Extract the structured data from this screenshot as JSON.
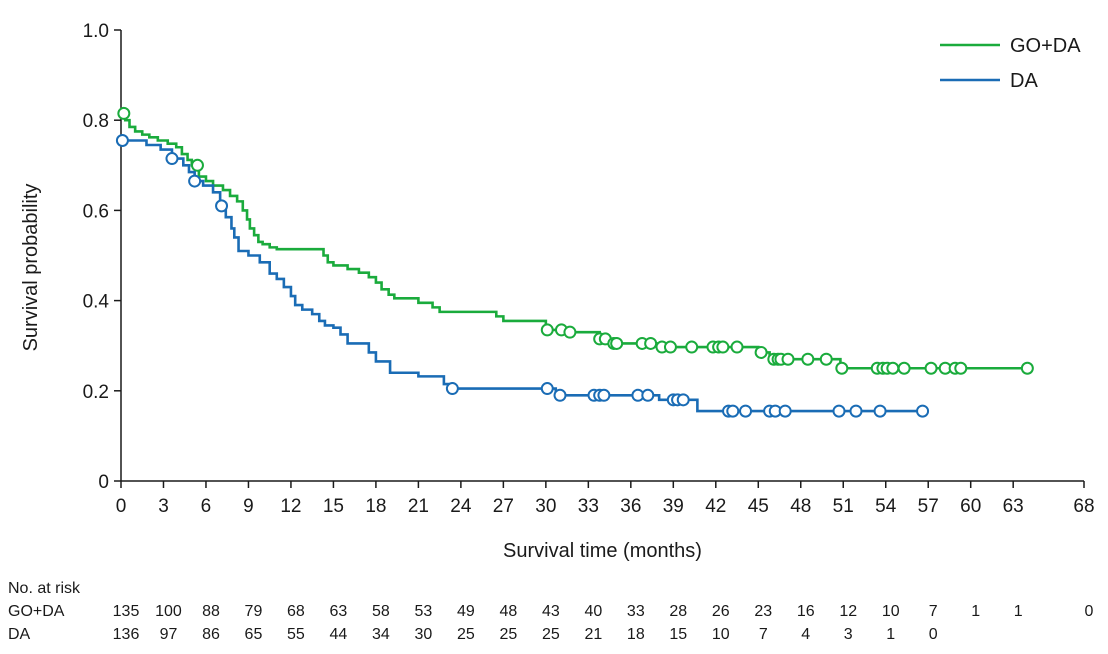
{
  "chart_data": {
    "type": "line",
    "subtype": "kaplan-meier",
    "xlabel": "Survival time (months)",
    "ylabel": "Survival probability",
    "xlim": [
      0,
      68
    ],
    "ylim": [
      0,
      1.0
    ],
    "x_ticks": [
      0,
      3,
      6,
      9,
      12,
      15,
      18,
      21,
      24,
      27,
      30,
      33,
      36,
      39,
      42,
      45,
      48,
      51,
      54,
      57,
      60,
      63,
      68
    ],
    "y_ticks": [
      0,
      0.2,
      0.4,
      0.6,
      0.8,
      1.0
    ],
    "y_tick_labels": [
      "0",
      "0.2",
      "0.4",
      "0.6",
      "0.8",
      "1.0"
    ],
    "grid": false,
    "legend_position": "top-right",
    "series": [
      {
        "name": "GO+DA",
        "color": "#1aab3c",
        "steps": [
          [
            0,
            0.815
          ],
          [
            0.3,
            0.8
          ],
          [
            0.6,
            0.785
          ],
          [
            1.0,
            0.775
          ],
          [
            1.5,
            0.768
          ],
          [
            2.0,
            0.762
          ],
          [
            2.6,
            0.755
          ],
          [
            3.3,
            0.748
          ],
          [
            3.9,
            0.74
          ],
          [
            4.3,
            0.725
          ],
          [
            4.7,
            0.712
          ],
          [
            5.0,
            0.7
          ],
          [
            5.5,
            0.675
          ],
          [
            6.0,
            0.665
          ],
          [
            6.5,
            0.655
          ],
          [
            7.2,
            0.645
          ],
          [
            7.7,
            0.632
          ],
          [
            8.2,
            0.62
          ],
          [
            8.6,
            0.6
          ],
          [
            8.9,
            0.58
          ],
          [
            9.1,
            0.56
          ],
          [
            9.4,
            0.545
          ],
          [
            9.7,
            0.53
          ],
          [
            10.0,
            0.525
          ],
          [
            10.5,
            0.518
          ],
          [
            11.0,
            0.514
          ],
          [
            14.3,
            0.5
          ],
          [
            14.6,
            0.485
          ],
          [
            15.0,
            0.478
          ],
          [
            16.0,
            0.47
          ],
          [
            16.8,
            0.462
          ],
          [
            17.5,
            0.452
          ],
          [
            18.0,
            0.44
          ],
          [
            18.4,
            0.425
          ],
          [
            18.9,
            0.413
          ],
          [
            19.3,
            0.405
          ],
          [
            21.0,
            0.395
          ],
          [
            22.0,
            0.385
          ],
          [
            22.5,
            0.375
          ],
          [
            26.5,
            0.365
          ],
          [
            27.0,
            0.355
          ],
          [
            30.0,
            0.335
          ],
          [
            31.2,
            0.33
          ],
          [
            33.8,
            0.315
          ],
          [
            34.5,
            0.305
          ],
          [
            36.0,
            0.305
          ],
          [
            38.0,
            0.297
          ],
          [
            45.0,
            0.285
          ],
          [
            45.8,
            0.27
          ],
          [
            49.7,
            0.27
          ],
          [
            50.8,
            0.25
          ],
          [
            64.0,
            0.25
          ]
        ],
        "censor_x": [
          0.2,
          5.4,
          30.1,
          31.1,
          31.7,
          33.8,
          34.2,
          34.8,
          35.0,
          36.8,
          37.4,
          38.2,
          38.8,
          40.3,
          41.8,
          42.2,
          42.5,
          43.5,
          45.2,
          46.1,
          46.4,
          46.6,
          47.1,
          48.5,
          49.8,
          50.9,
          53.4,
          53.8,
          54.1,
          54.5,
          55.3,
          57.2,
          58.2,
          58.9,
          59.3,
          64.0
        ]
      },
      {
        "name": "DA",
        "color": "#1a6cb5",
        "steps": [
          [
            0,
            0.755
          ],
          [
            1.8,
            0.745
          ],
          [
            2.8,
            0.735
          ],
          [
            3.6,
            0.715
          ],
          [
            4.4,
            0.7
          ],
          [
            4.8,
            0.685
          ],
          [
            5.2,
            0.665
          ],
          [
            5.8,
            0.655
          ],
          [
            6.5,
            0.64
          ],
          [
            7.0,
            0.61
          ],
          [
            7.4,
            0.585
          ],
          [
            7.8,
            0.56
          ],
          [
            8.0,
            0.54
          ],
          [
            8.3,
            0.51
          ],
          [
            9.0,
            0.5
          ],
          [
            9.8,
            0.485
          ],
          [
            10.5,
            0.46
          ],
          [
            11.0,
            0.448
          ],
          [
            11.5,
            0.43
          ],
          [
            12.0,
            0.41
          ],
          [
            12.3,
            0.39
          ],
          [
            12.8,
            0.38
          ],
          [
            13.5,
            0.37
          ],
          [
            14.0,
            0.355
          ],
          [
            14.4,
            0.345
          ],
          [
            15.0,
            0.34
          ],
          [
            15.5,
            0.325
          ],
          [
            16.0,
            0.305
          ],
          [
            17.5,
            0.285
          ],
          [
            18.0,
            0.265
          ],
          [
            19.0,
            0.24
          ],
          [
            21.0,
            0.232
          ],
          [
            22.8,
            0.215
          ],
          [
            23.4,
            0.205
          ],
          [
            30.0,
            0.205
          ],
          [
            30.7,
            0.19
          ],
          [
            38.0,
            0.18
          ],
          [
            40.7,
            0.155
          ],
          [
            56.8,
            0.155
          ]
        ],
        "censor_x": [
          0.1,
          3.6,
          5.2,
          7.1,
          23.4,
          30.1,
          31.0,
          33.4,
          33.8,
          34.1,
          36.5,
          37.2,
          39.0,
          39.3,
          39.7,
          42.9,
          43.2,
          44.1,
          45.8,
          46.2,
          46.9,
          50.7,
          51.9,
          53.6,
          56.6
        ]
      }
    ],
    "risk_table": {
      "title": "No. at risk",
      "columns_x": [
        0,
        3,
        6,
        9,
        12,
        15,
        18,
        21,
        24,
        27,
        30,
        33,
        36,
        39,
        42,
        45,
        48,
        51,
        54,
        57,
        60,
        63,
        68
      ],
      "rows": [
        {
          "label": "GO+DA",
          "values": [
            "135",
            "100",
            "88",
            "79",
            "68",
            "63",
            "58",
            "53",
            "49",
            "48",
            "43",
            "40",
            "33",
            "28",
            "26",
            "23",
            "16",
            "12",
            "10",
            "7",
            "1",
            "1",
            "0"
          ]
        },
        {
          "label": "DA",
          "values": [
            "136",
            "97",
            "86",
            "65",
            "55",
            "44",
            "34",
            "30",
            "25",
            "25",
            "25",
            "21",
            "18",
            "15",
            "10",
            "7",
            "4",
            "3",
            "1",
            "0"
          ]
        }
      ]
    }
  }
}
